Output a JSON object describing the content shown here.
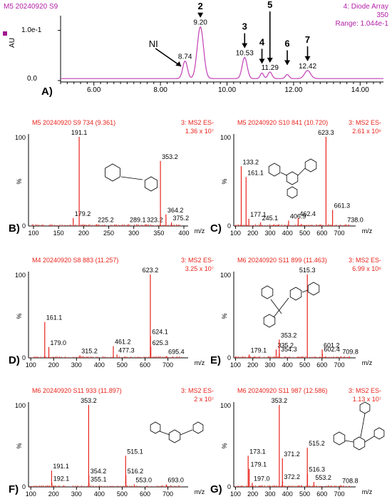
{
  "chart_data": [
    {
      "type": "line",
      "panel": "A)",
      "header_left": "M5 20240920 S9",
      "header_right": [
        "4: Diode Array",
        "350",
        "Range: 1.044e-1"
      ],
      "ylabel": "AU",
      "yticks": [
        "1.0e-1",
        "0.0"
      ],
      "ylim": [
        0,
        0.118
      ],
      "xlim": [
        5.0,
        14.7
      ],
      "xticks": [
        6,
        8,
        10,
        12,
        14
      ],
      "xtick_labels": [
        "6.00",
        "8.00",
        "10.00",
        "12.00",
        "14.00"
      ],
      "peak_labels": [
        {
          "x": 8.74,
          "label": "8.74"
        },
        {
          "x": 9.2,
          "label": "9.20"
        },
        {
          "x": 10.53,
          "label": "10.53"
        },
        {
          "x": 11.29,
          "label": "11.29"
        },
        {
          "x": 12.42,
          "label": "12.42"
        }
      ],
      "peaks": [
        {
          "x": 8.74,
          "y": 0.035,
          "w": 0.07
        },
        {
          "x": 9.2,
          "y": 0.103,
          "w": 0.095
        },
        {
          "x": 10.53,
          "y": 0.042,
          "w": 0.075
        },
        {
          "x": 11.05,
          "y": 0.011,
          "w": 0.05
        },
        {
          "x": 11.29,
          "y": 0.013,
          "w": 0.06
        },
        {
          "x": 11.81,
          "y": 0.008,
          "w": 0.055
        },
        {
          "x": 12.42,
          "y": 0.016,
          "w": 0.09
        }
      ],
      "annotations": [
        {
          "text": "NI",
          "x": 8.65
        },
        {
          "text": "2",
          "x": 9.2
        },
        {
          "text": "3",
          "x": 10.53
        },
        {
          "text": "4",
          "x": 11.05
        },
        {
          "text": "5",
          "x": 11.29
        },
        {
          "text": "6",
          "x": 11.81
        },
        {
          "text": "7",
          "x": 12.42
        }
      ]
    },
    {
      "type": "bar",
      "panel": "B)",
      "header": "M5 20240920 S9 734 (9.361)",
      "mode": "3: MS2 ES-",
      "intensity": "1.36 x 10⁷",
      "ylabel": "%",
      "yticks": [
        "100",
        "0"
      ],
      "xlabel": "m/z",
      "xlim": [
        90,
        400
      ],
      "xticks": [
        100,
        150,
        200,
        250,
        300,
        350,
        400
      ],
      "peaks": [
        [
          179.2,
          9
        ],
        [
          191.1,
          100
        ],
        [
          225.2,
          2
        ],
        [
          289.1,
          2
        ],
        [
          323.2,
          2
        ],
        [
          353.2,
          73
        ],
        [
          364.2,
          13
        ],
        [
          375.2,
          4
        ]
      ],
      "labels": [
        "179.2",
        "191.1",
        "225.2",
        "289.1",
        "323.2",
        "353.2",
        "364.2",
        "375.2"
      ]
    },
    {
      "type": "bar",
      "panel": "C)",
      "header": "M5 20240920 S10 841 (10.720)",
      "mode": "3: MS2 ES-",
      "intensity": "2.61 x 10⁶",
      "ylabel": "%",
      "yticks": [
        "100",
        "0"
      ],
      "xlabel": "m/z",
      "xlim": [
        90,
        770
      ],
      "xticks": [
        100,
        200,
        300,
        400,
        500,
        600,
        700
      ],
      "peaks": [
        [
          133.2,
          67
        ],
        [
          161.1,
          55
        ],
        [
          177.1,
          8
        ],
        [
          245.1,
          4
        ],
        [
          406.9,
          6
        ],
        [
          462.4,
          9
        ],
        [
          623.3,
          100
        ],
        [
          661.3,
          18
        ],
        [
          738.0,
          2
        ]
      ],
      "labels": [
        "133.2",
        "161.1",
        "177.1",
        "245.1",
        "406.9",
        "462.4",
        "623.3",
        "661.3",
        "738.0"
      ]
    },
    {
      "type": "bar",
      "panel": "D)",
      "header": "M4 20240920 S8 883 (11.257)",
      "mode": "3: MS2 ES-",
      "intensity": "3.25 x 10⁷",
      "ylabel": "%",
      "yticks": [
        "100",
        "0"
      ],
      "xlabel": "m/z",
      "xlim": [
        90,
        770
      ],
      "xticks": [
        100,
        200,
        300,
        400,
        500,
        600,
        700
      ],
      "peaks": [
        [
          161.1,
          43
        ],
        [
          179.0,
          13
        ],
        [
          315.2,
          3
        ],
        [
          461.2,
          14
        ],
        [
          477.3,
          4
        ],
        [
          623.2,
          100
        ],
        [
          624.1,
          26
        ],
        [
          625.3,
          13
        ],
        [
          695.4,
          2
        ]
      ],
      "labels": [
        "161.1",
        "179.0",
        "315.2",
        "461.2",
        "477.3",
        "623.2",
        "624.1",
        "625.3",
        "695.4"
      ]
    },
    {
      "type": "bar",
      "panel": "E)",
      "header": "M6 20240920 S11 899 (11.463)",
      "mode": "3: MS2 ES-",
      "intensity": "6.99 x 10⁶",
      "ylabel": "%",
      "yticks": [
        "100",
        "0"
      ],
      "xlabel": "m/z",
      "xlim": [
        90,
        770
      ],
      "xticks": [
        100,
        200,
        300,
        400,
        500,
        600,
        700
      ],
      "peaks": [
        [
          179.1,
          4
        ],
        [
          335.2,
          10
        ],
        [
          353.2,
          22
        ],
        [
          354.3,
          5
        ],
        [
          515.3,
          100
        ],
        [
          601.2,
          10
        ],
        [
          602.4,
          5
        ],
        [
          709.8,
          2
        ]
      ],
      "labels": [
        "179.1",
        "335.2",
        "353.2",
        "354.3",
        "515.3",
        "601.2",
        "602.4",
        "709.8"
      ]
    },
    {
      "type": "bar",
      "panel": "F)",
      "header": "M6 20240920 S11 933 (11.897)",
      "mode": "3: MS2 ES-",
      "intensity": "2 x 10⁷",
      "ylabel": "%",
      "yticks": [
        "100",
        "0"
      ],
      "xlabel": "m/z",
      "xlim": [
        90,
        770
      ],
      "xticks": [
        100,
        200,
        300,
        400,
        500,
        600,
        700
      ],
      "peaks": [
        [
          191.1,
          20
        ],
        [
          192.1,
          5
        ],
        [
          353.2,
          100
        ],
        [
          354.2,
          14
        ],
        [
          355.1,
          4
        ],
        [
          515.1,
          38
        ],
        [
          516.2,
          14
        ],
        [
          553.0,
          3
        ],
        [
          693.0,
          3
        ]
      ],
      "labels": [
        "191.1",
        "192.1",
        "353.2",
        "354.2",
        "355.1",
        "515.1",
        "516.2",
        "553.0",
        "693.0"
      ]
    },
    {
      "type": "bar",
      "panel": "G)",
      "header": "M6 20240920 S11 987 (12.586)",
      "mode": "3: MS2 ES-",
      "intensity": "1.13 x 10⁷",
      "ylabel": "%",
      "yticks": [
        "100",
        "0"
      ],
      "xlabel": "m/z",
      "xlim": [
        90,
        770
      ],
      "xticks": [
        100,
        200,
        300,
        400,
        500,
        600,
        700
      ],
      "peaks": [
        [
          173.1,
          38
        ],
        [
          179.1,
          22
        ],
        [
          197.0,
          5
        ],
        [
          353.2,
          100
        ],
        [
          371.2,
          35
        ],
        [
          372.2,
          7
        ],
        [
          515.2,
          48
        ],
        [
          516.3,
          16
        ],
        [
          553.2,
          6
        ],
        [
          708.8,
          2
        ]
      ],
      "labels": [
        "173.1",
        "179.1",
        "197.0",
        "353.2",
        "371.2",
        "372.2",
        "515.2",
        "516.3",
        "553.2",
        "708.8"
      ]
    }
  ]
}
